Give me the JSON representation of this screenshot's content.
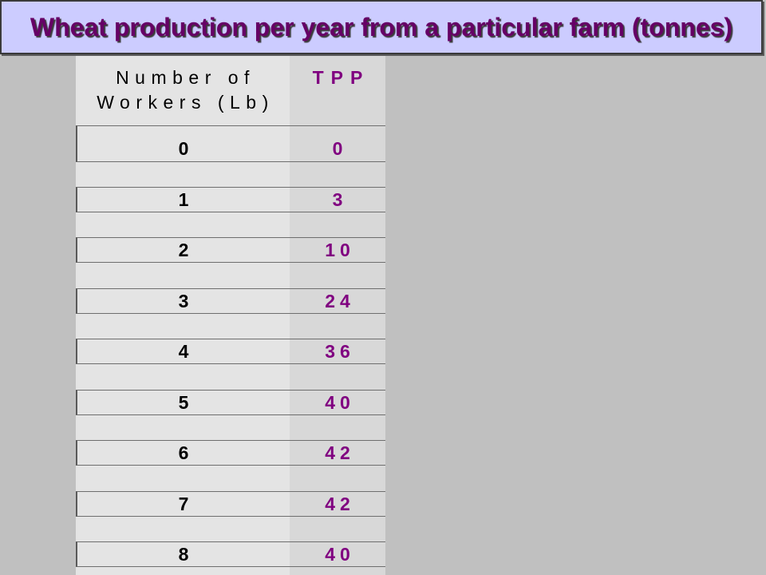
{
  "slide": {
    "title": "Wheat production per year from a particular farm (tonnes)"
  },
  "table": {
    "header": {
      "workers": [
        "Number of",
        "Workers (Lb)"
      ],
      "tpp": "TPP"
    },
    "rows": [
      {
        "workers": "0",
        "tpp": "0"
      },
      {
        "workers": "1",
        "tpp": "3"
      },
      {
        "workers": "2",
        "tpp": "10"
      },
      {
        "workers": "3",
        "tpp": "24"
      },
      {
        "workers": "4",
        "tpp": "36"
      },
      {
        "workers": "5",
        "tpp": "40"
      },
      {
        "workers": "6",
        "tpp": "42"
      },
      {
        "workers": "7",
        "tpp": "42"
      },
      {
        "workers": "8",
        "tpp": "40"
      }
    ]
  },
  "colors": {
    "page_background": "#C0C0C0",
    "title_background": "#CCCCFF",
    "title_text": "#660066",
    "accent": "#800080"
  }
}
